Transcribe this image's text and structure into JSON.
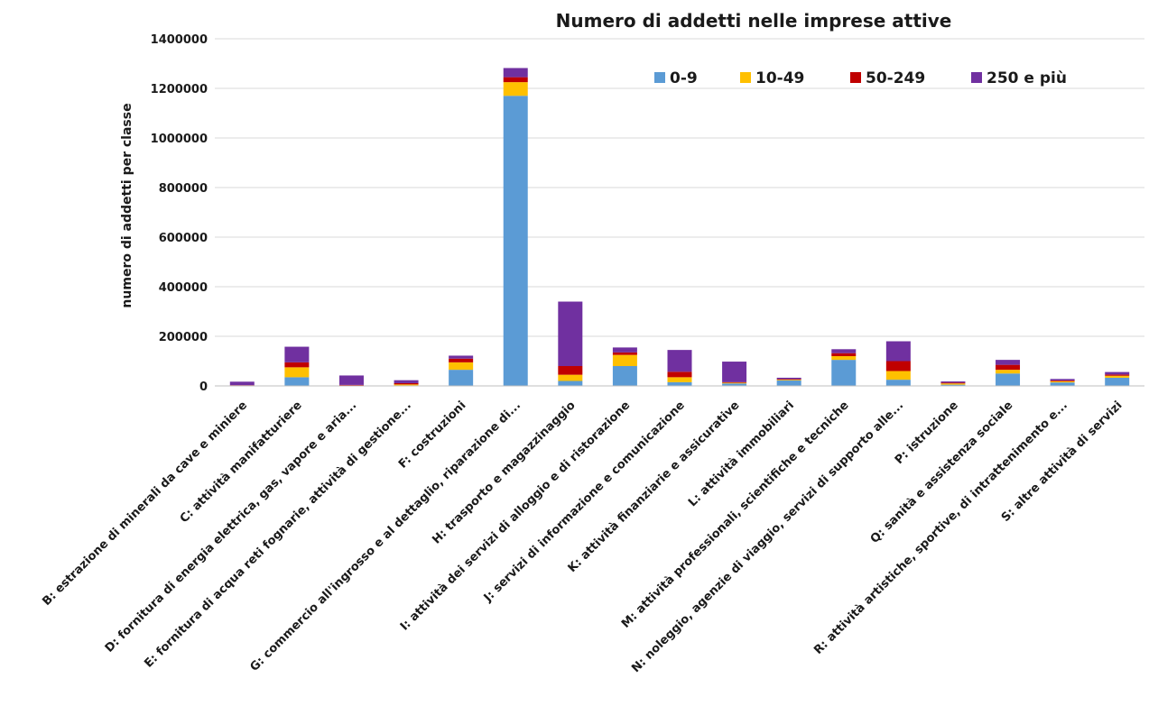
{
  "chart_data": {
    "type": "bar",
    "stacked": true,
    "title": "Numero di addetti nelle imprese attive",
    "xlabel": "",
    "ylabel": "numero di addetti per classe",
    "ylim": [
      0,
      1400000
    ],
    "yticks": [
      0,
      200000,
      400000,
      600000,
      800000,
      1000000,
      1200000,
      1400000
    ],
    "grid": true,
    "legend_position": "top-right",
    "categories": [
      "B: estrazione di minerali da cave e miniere",
      "C: attività manifatturiere",
      "D: fornitura di energia elettrica, gas, vapore e aria...",
      "E: fornitura di acqua reti fognarie, attività di gestione...",
      "F: costruzioni",
      "G: commercio all'ingrosso e al dettaglio, riparazione di...",
      "H: trasporto e magazzinaggio",
      "I: attività dei servizi di alloggio e di ristorazione",
      "J: servizi di informazione e comunicazione",
      "K: attività finanziarie e assicurative",
      "L: attività immobiliari",
      "M: attività professionali, scientifiche e tecniche",
      "N: noleggio, agenzie di viaggio, servizi di supporto alle...",
      "P: istruzione",
      "Q: sanità e assistenza sociale",
      "R: attività artistiche, sportive, di intrattenimento e...",
      "S: altre attività di servizi"
    ],
    "series": [
      {
        "name": "0-9",
        "color": "#5b9bd5",
        "values": [
          1000,
          35000,
          1000,
          2000,
          65000,
          1170000,
          20000,
          80000,
          15000,
          10000,
          22000,
          105000,
          25000,
          5000,
          50000,
          14000,
          33000
        ]
      },
      {
        "name": "10-49",
        "color": "#ffc000",
        "values": [
          1000,
          40000,
          1000,
          4000,
          30000,
          55000,
          25000,
          45000,
          20000,
          3000,
          3000,
          15000,
          35000,
          5000,
          15000,
          5000,
          8000
        ]
      },
      {
        "name": "50-249",
        "color": "#c00000",
        "values": [
          1000,
          20000,
          2000,
          5000,
          15000,
          20000,
          35000,
          10000,
          22000,
          2000,
          2000,
          12000,
          40000,
          3000,
          20000,
          3000,
          5000
        ]
      },
      {
        "name": "250 e più",
        "color": "#7030a0",
        "values": [
          14000,
          63000,
          38000,
          12000,
          12000,
          37000,
          260000,
          20000,
          88000,
          83000,
          6000,
          16000,
          80000,
          5000,
          20000,
          6000,
          10000
        ]
      }
    ]
  }
}
